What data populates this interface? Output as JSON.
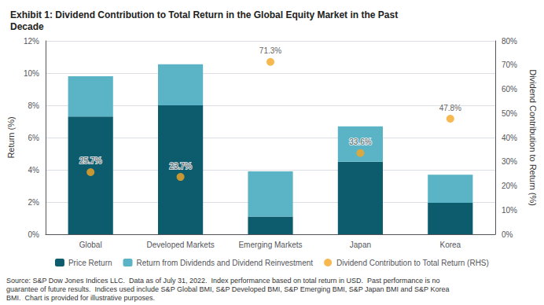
{
  "chart_data": {
    "type": "bar",
    "title": "Exhibit 1: Dividend Contribution to Total Return in the Global Equity Market in the Past\nDecade",
    "categories": [
      "Global",
      "Developed Markets",
      "Emerging Markets",
      "Japan",
      "Korea"
    ],
    "series": [
      {
        "name": "Price Return",
        "color": "#0d5c6e",
        "values": [
          7.3,
          8.0,
          1.1,
          4.5,
          1.95
        ]
      },
      {
        "name": "Return from Dividends and Dividend Reinvestment",
        "color": "#5ab4c5",
        "values": [
          2.5,
          2.55,
          2.8,
          2.2,
          1.75
        ]
      },
      {
        "name": "Dividend Contribution to Total Return (RHS)",
        "type": "scatter",
        "marker": "circle",
        "axis": "y2",
        "color": "#f5a623",
        "values": [
          25.7,
          23.7,
          71.3,
          33.6,
          47.8
        ],
        "value_labels": [
          "25.7%",
          "23.7%",
          "71.3%",
          "33.6%",
          "47.8%"
        ]
      }
    ],
    "stacked": true,
    "ylabel": "Return (%)",
    "y2label": "Dividend Contribution to Return (%)",
    "ylim": [
      0,
      12
    ],
    "yticks": [
      {
        "value": 0,
        "label": "0%"
      },
      {
        "value": 2,
        "label": "2%"
      },
      {
        "value": 4,
        "label": "4%"
      },
      {
        "value": 6,
        "label": "6%"
      },
      {
        "value": 8,
        "label": "8%"
      },
      {
        "value": 10,
        "label": "10%"
      },
      {
        "value": 12,
        "label": "12%"
      }
    ],
    "y2lim": [
      0,
      80
    ],
    "y2ticks": [
      {
        "value": 0,
        "label": "0%"
      },
      {
        "value": 10,
        "label": "10%"
      },
      {
        "value": 20,
        "label": "20%"
      },
      {
        "value": 30,
        "label": "30%"
      },
      {
        "value": 40,
        "label": "40%"
      },
      {
        "value": 50,
        "label": "50%"
      },
      {
        "value": 60,
        "label": "60%"
      },
      {
        "value": 70,
        "label": "70%"
      },
      {
        "value": 80,
        "label": "80%"
      }
    ],
    "grid": true,
    "legend": "bottom",
    "source": "Source: S&P Dow Jones Indices LLC.  Data as of July 31, 2022.  Index performance based on total return in USD.  Past performance is no\nguarantee of future results.  Indices used include S&P Global BMI, S&P Developed BMI, S&P Emerging BMI, S&P Japan BMI and S&P Korea\nBMI.  Chart is provided for illustrative purposes."
  }
}
